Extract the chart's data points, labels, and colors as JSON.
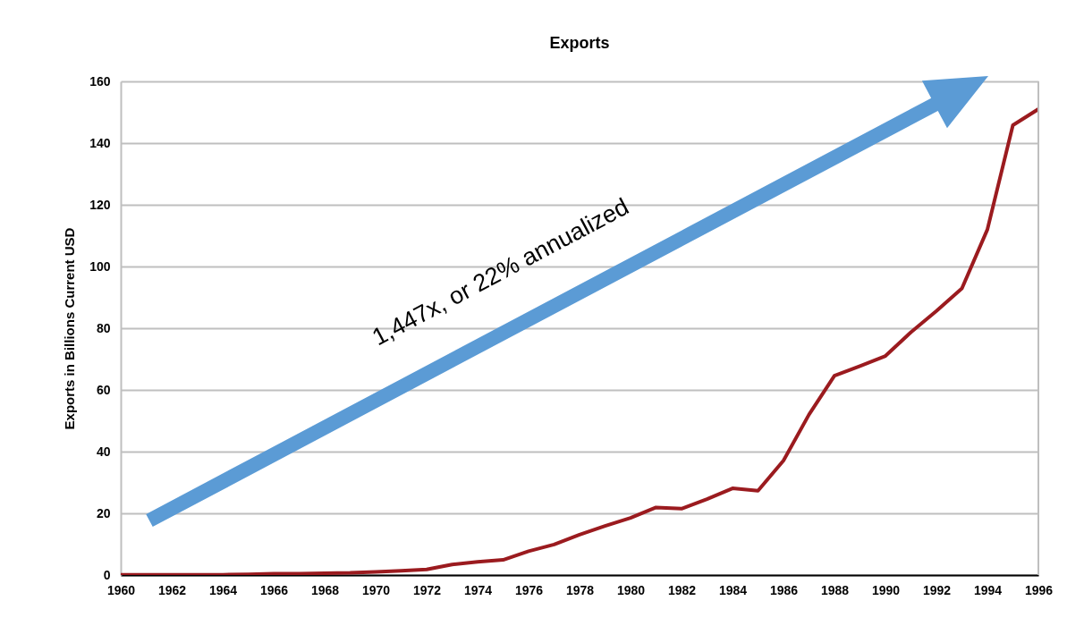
{
  "chart_data": {
    "type": "line",
    "title": "Exports",
    "ylabel": "Exports in Billions Current USD",
    "annotations": [
      "1,447x, or 22% annualized"
    ],
    "x": [
      1960,
      1961,
      1962,
      1963,
      1964,
      1965,
      1966,
      1967,
      1968,
      1969,
      1970,
      1971,
      1972,
      1973,
      1974,
      1975,
      1976,
      1977,
      1978,
      1979,
      1980,
      1981,
      1982,
      1983,
      1984,
      1985,
      1986,
      1987,
      1988,
      1989,
      1990,
      1991,
      1992,
      1993,
      1994,
      1995,
      1996
    ],
    "series": [
      {
        "color": "#9b1b1f",
        "values": [
          0.1,
          0.1,
          0.1,
          0.1,
          0.1,
          0.2,
          0.4,
          0.4,
          0.6,
          0.7,
          1.0,
          1.4,
          1.8,
          3.4,
          4.3,
          4.9,
          7.7,
          9.9,
          13.1,
          15.9,
          18.5,
          21.9,
          21.5,
          24.6,
          28.1,
          27.3,
          37.1,
          52,
          64.6,
          67.7,
          71,
          78.7,
          85.6,
          92.9,
          112,
          145.8,
          151
        ]
      }
    ],
    "xlim": [
      1960,
      1996
    ],
    "xticks": [
      1960,
      1962,
      1964,
      1966,
      1968,
      1970,
      1972,
      1974,
      1976,
      1978,
      1980,
      1982,
      1984,
      1986,
      1988,
      1990,
      1992,
      1994,
      1996
    ],
    "ylim": [
      0,
      160
    ],
    "yticks": [
      0,
      20,
      40,
      60,
      80,
      100,
      120,
      140,
      160
    ],
    "grid": "y",
    "marker": "none",
    "line_style": "solid"
  }
}
